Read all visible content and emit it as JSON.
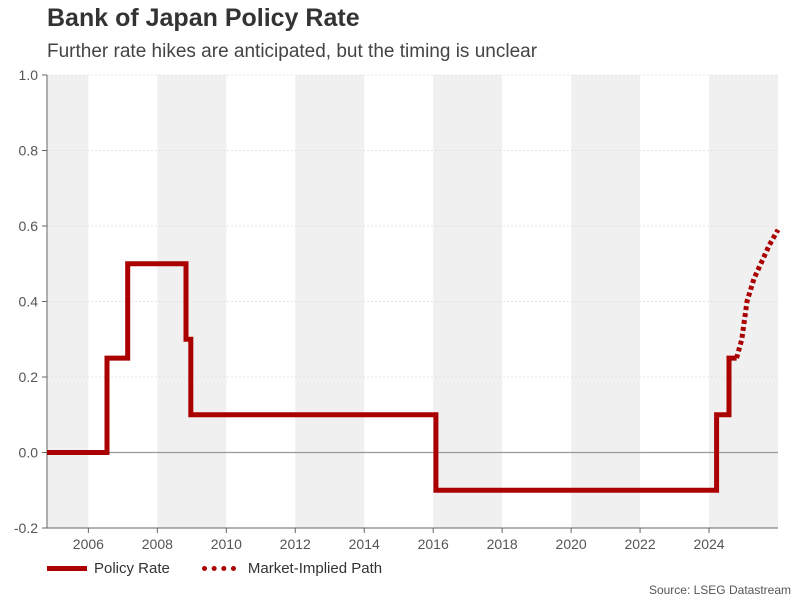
{
  "title": "Bank of Japan Policy Rate",
  "subtitle": "Further rate hikes are anticipated, but the timing is unclear",
  "source": "Source: LSEG Datastream",
  "chart_data": {
    "type": "line",
    "xlim": [
      2004.8,
      2026.0
    ],
    "ylim": [
      -0.2,
      1.0
    ],
    "x_ticks": [
      2006,
      2008,
      2010,
      2012,
      2014,
      2016,
      2018,
      2020,
      2022,
      2024
    ],
    "x_tick_labels": [
      "2006",
      "2008",
      "2010",
      "2012",
      "2014",
      "2016",
      "2018",
      "2020",
      "2022",
      "2024"
    ],
    "y_ticks": [
      -0.2,
      0.0,
      0.2,
      0.4,
      0.6,
      0.8,
      1.0
    ],
    "y_tick_labels": [
      "-0.2",
      "0.0",
      "0.2",
      "0.4",
      "0.6",
      "0.8",
      "1.0"
    ],
    "shaded_year_bands": [
      [
        2004.8,
        2006
      ],
      [
        2008,
        2010
      ],
      [
        2012,
        2014
      ],
      [
        2016,
        2018
      ],
      [
        2020,
        2022
      ],
      [
        2024,
        2026.0
      ]
    ],
    "series": [
      {
        "name": "Policy Rate",
        "style": "solid",
        "color": "#aa0000",
        "points": [
          [
            2004.8,
            0.0
          ],
          [
            2006.54,
            0.0
          ],
          [
            2006.54,
            0.25
          ],
          [
            2007.14,
            0.25
          ],
          [
            2007.14,
            0.5
          ],
          [
            2008.83,
            0.5
          ],
          [
            2008.83,
            0.3
          ],
          [
            2008.97,
            0.3
          ],
          [
            2008.97,
            0.1
          ],
          [
            2016.08,
            0.1
          ],
          [
            2016.08,
            -0.1
          ],
          [
            2024.22,
            -0.1
          ],
          [
            2024.22,
            0.1
          ],
          [
            2024.58,
            0.1
          ],
          [
            2024.58,
            0.25
          ],
          [
            2024.8,
            0.25
          ]
        ]
      },
      {
        "name": "Market-Implied Path",
        "style": "dotted",
        "color": "#aa0000",
        "points": [
          [
            2024.8,
            0.25
          ],
          [
            2024.95,
            0.3
          ],
          [
            2025.1,
            0.4
          ],
          [
            2025.3,
            0.46
          ],
          [
            2025.5,
            0.5
          ],
          [
            2025.75,
            0.55
          ],
          [
            2026.0,
            0.59
          ]
        ]
      }
    ],
    "legend": [
      "Policy Rate",
      "Market-Implied Path"
    ],
    "legend_position": "bottom-left"
  }
}
